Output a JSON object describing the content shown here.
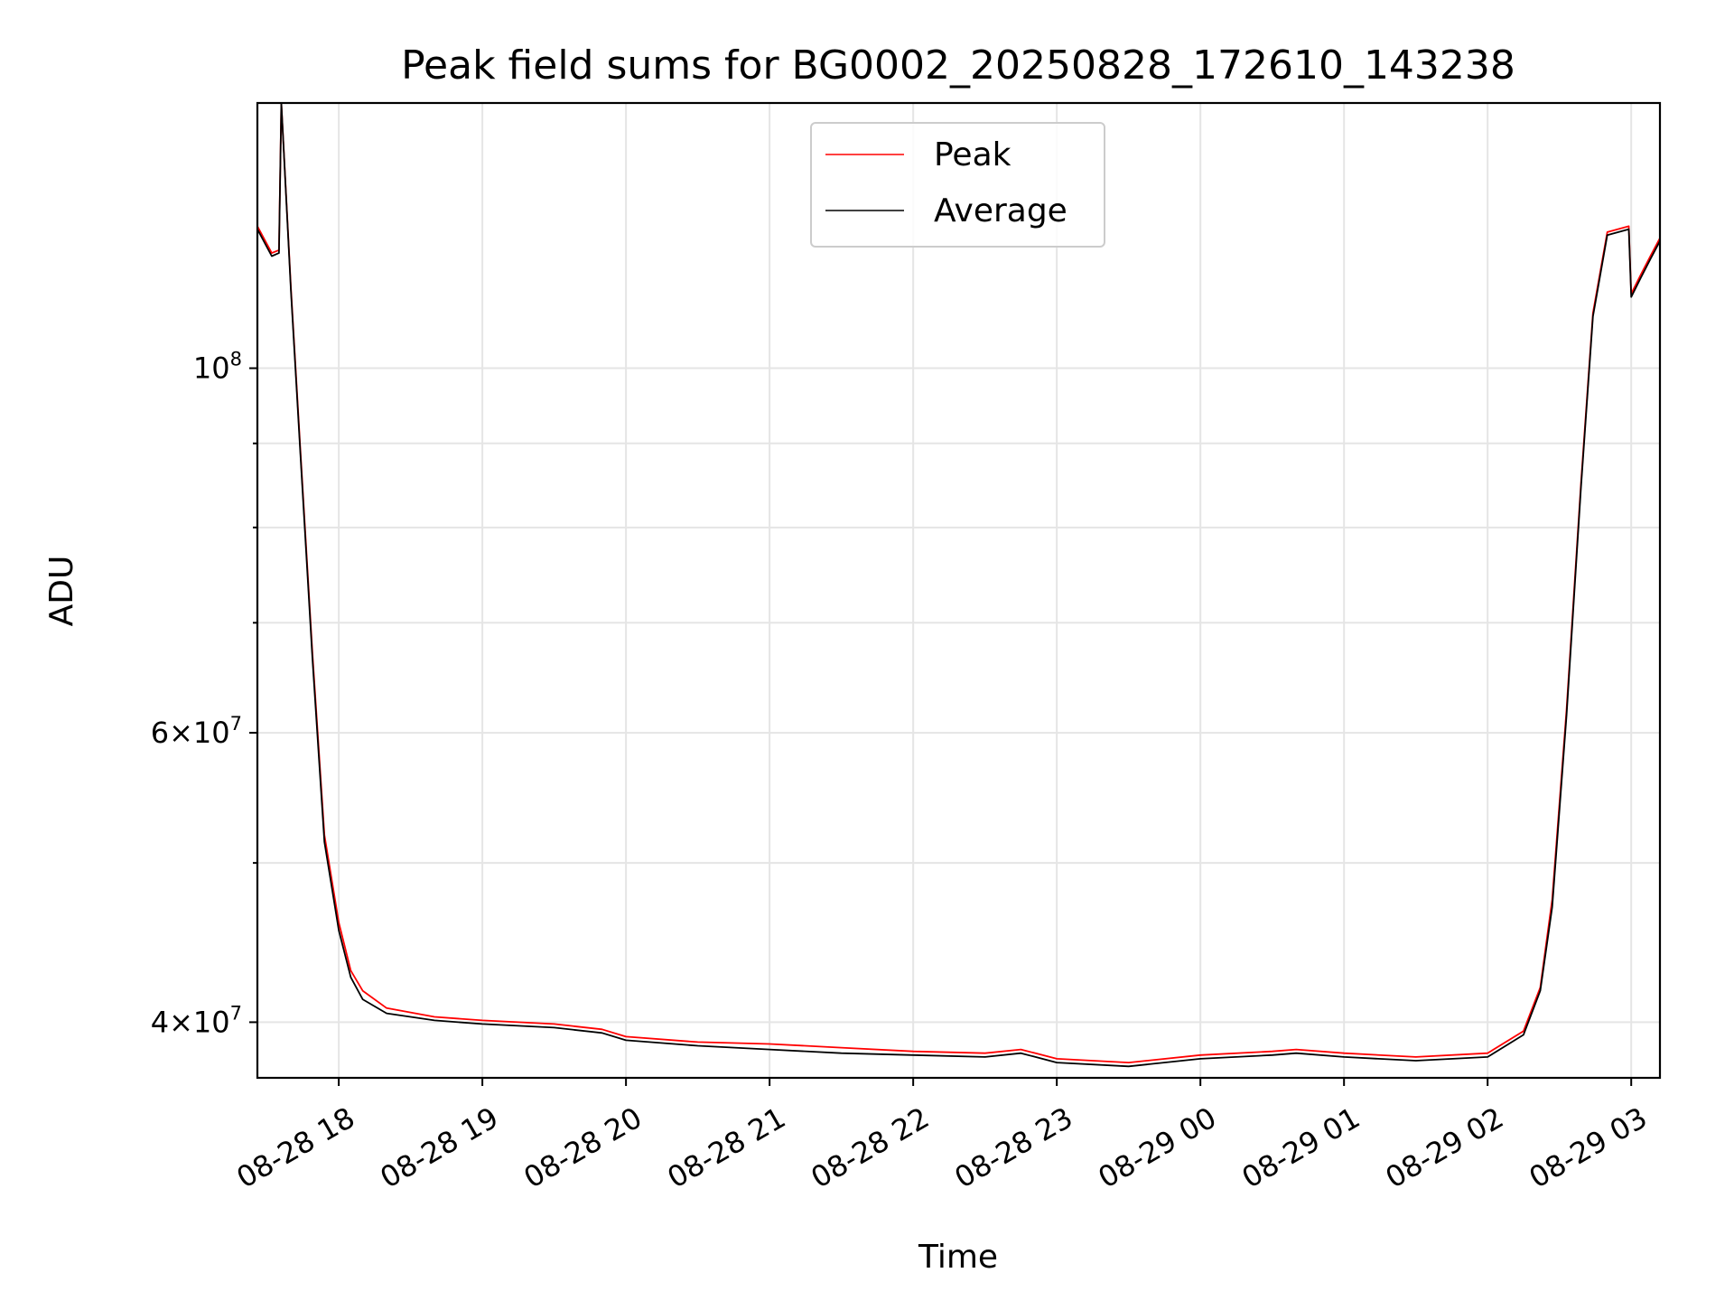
{
  "chart_data": {
    "type": "line",
    "title": "Peak field sums for BG0002_20250828_172610_143238",
    "xlabel": "Time",
    "ylabel": "ADU",
    "y_scale": "log",
    "ylim": [
      37000000,
      145000000
    ],
    "xlim": [
      "2025-08-28 17:26",
      "2025-08-29 03:12"
    ],
    "x_ticks": [
      {
        "t": "2025-08-28 18:00",
        "label": "08-28 18"
      },
      {
        "t": "2025-08-28 19:00",
        "label": "08-28 19"
      },
      {
        "t": "2025-08-28 20:00",
        "label": "08-28 20"
      },
      {
        "t": "2025-08-28 21:00",
        "label": "08-28 21"
      },
      {
        "t": "2025-08-28 22:00",
        "label": "08-28 22"
      },
      {
        "t": "2025-08-28 23:00",
        "label": "08-28 23"
      },
      {
        "t": "2025-08-29 00:00",
        "label": "08-29 00"
      },
      {
        "t": "2025-08-29 01:00",
        "label": "08-29 01"
      },
      {
        "t": "2025-08-29 02:00",
        "label": "08-29 02"
      },
      {
        "t": "2025-08-29 03:00",
        "label": "08-29 03"
      }
    ],
    "y_ticks": [
      {
        "value": 40000000,
        "mant": "4",
        "exp": "7"
      },
      {
        "value": 60000000,
        "mant": "6",
        "exp": "7"
      },
      {
        "value": 100000000,
        "mant": "",
        "exp": "8"
      }
    ],
    "y_minor_ticks": [
      50000000,
      70000000,
      80000000,
      90000000
    ],
    "grid": true,
    "legend_position": "top-center",
    "series": [
      {
        "name": "Peak",
        "color": "#ff0000",
        "points": [
          [
            "2025-08-28 17:26",
            122000000
          ],
          [
            "2025-08-28 17:32",
            117500000
          ],
          [
            "2025-08-28 17:35",
            118000000
          ],
          [
            "2025-08-28 17:36",
            145000000
          ],
          [
            "2025-08-28 17:40",
            112000000
          ],
          [
            "2025-08-28 17:44",
            89000000
          ],
          [
            "2025-08-28 17:49",
            67000000
          ],
          [
            "2025-08-28 17:54",
            52000000
          ],
          [
            "2025-08-28 18:00",
            46000000
          ],
          [
            "2025-08-28 18:05",
            43000000
          ],
          [
            "2025-08-28 18:10",
            41800000
          ],
          [
            "2025-08-28 18:20",
            40800000
          ],
          [
            "2025-08-28 18:40",
            40300000
          ],
          [
            "2025-08-28 19:00",
            40100000
          ],
          [
            "2025-08-28 19:30",
            39900000
          ],
          [
            "2025-08-28 19:50",
            39600000
          ],
          [
            "2025-08-28 20:00",
            39200000
          ],
          [
            "2025-08-28 20:30",
            38900000
          ],
          [
            "2025-08-28 21:00",
            38800000
          ],
          [
            "2025-08-28 21:30",
            38600000
          ],
          [
            "2025-08-28 22:00",
            38400000
          ],
          [
            "2025-08-28 22:30",
            38300000
          ],
          [
            "2025-08-28 22:45",
            38500000
          ],
          [
            "2025-08-28 23:00",
            38000000
          ],
          [
            "2025-08-28 23:30",
            37800000
          ],
          [
            "2025-08-29 00:00",
            38200000
          ],
          [
            "2025-08-29 00:30",
            38400000
          ],
          [
            "2025-08-29 00:40",
            38500000
          ],
          [
            "2025-08-29 01:00",
            38300000
          ],
          [
            "2025-08-29 01:30",
            38100000
          ],
          [
            "2025-08-29 02:00",
            38300000
          ],
          [
            "2025-08-29 02:15",
            39500000
          ],
          [
            "2025-08-29 02:22",
            42000000
          ],
          [
            "2025-08-29 02:27",
            47500000
          ],
          [
            "2025-08-29 02:33",
            62000000
          ],
          [
            "2025-08-29 02:39",
            85000000
          ],
          [
            "2025-08-29 02:44",
            108000000
          ],
          [
            "2025-08-29 02:50",
            121000000
          ],
          [
            "2025-08-29 02:59",
            122000000
          ],
          [
            "2025-08-29 03:00",
            111000000
          ],
          [
            "2025-08-29 03:04",
            114000000
          ],
          [
            "2025-08-29 03:08",
            117000000
          ],
          [
            "2025-08-29 03:12",
            120000000
          ]
        ]
      },
      {
        "name": "Average",
        "color": "#000000",
        "points": [
          [
            "2025-08-28 17:26",
            121500000
          ],
          [
            "2025-08-28 17:32",
            117000000
          ],
          [
            "2025-08-28 17:35",
            117500000
          ],
          [
            "2025-08-28 17:36",
            145000000
          ],
          [
            "2025-08-28 17:40",
            111500000
          ],
          [
            "2025-08-28 17:44",
            88500000
          ],
          [
            "2025-08-28 17:49",
            66500000
          ],
          [
            "2025-08-28 17:54",
            51500000
          ],
          [
            "2025-08-28 18:00",
            45500000
          ],
          [
            "2025-08-28 18:05",
            42600000
          ],
          [
            "2025-08-28 18:10",
            41300000
          ],
          [
            "2025-08-28 18:20",
            40500000
          ],
          [
            "2025-08-28 18:40",
            40100000
          ],
          [
            "2025-08-28 19:00",
            39900000
          ],
          [
            "2025-08-28 19:30",
            39700000
          ],
          [
            "2025-08-28 19:50",
            39400000
          ],
          [
            "2025-08-28 20:00",
            39000000
          ],
          [
            "2025-08-28 20:30",
            38700000
          ],
          [
            "2025-08-28 21:00",
            38500000
          ],
          [
            "2025-08-28 21:30",
            38300000
          ],
          [
            "2025-08-28 22:00",
            38200000
          ],
          [
            "2025-08-28 22:30",
            38100000
          ],
          [
            "2025-08-28 22:45",
            38300000
          ],
          [
            "2025-08-28 23:00",
            37800000
          ],
          [
            "2025-08-28 23:30",
            37600000
          ],
          [
            "2025-08-29 00:00",
            38000000
          ],
          [
            "2025-08-29 00:30",
            38200000
          ],
          [
            "2025-08-29 00:40",
            38300000
          ],
          [
            "2025-08-29 01:00",
            38100000
          ],
          [
            "2025-08-29 01:30",
            37900000
          ],
          [
            "2025-08-29 02:00",
            38100000
          ],
          [
            "2025-08-29 02:15",
            39300000
          ],
          [
            "2025-08-29 02:22",
            41800000
          ],
          [
            "2025-08-29 02:27",
            47000000
          ],
          [
            "2025-08-29 02:33",
            61500000
          ],
          [
            "2025-08-29 02:39",
            84500000
          ],
          [
            "2025-08-29 02:44",
            107500000
          ],
          [
            "2025-08-29 02:50",
            120500000
          ],
          [
            "2025-08-29 02:59",
            121500000
          ],
          [
            "2025-08-29 03:00",
            110500000
          ],
          [
            "2025-08-29 03:04",
            113500000
          ],
          [
            "2025-08-29 03:08",
            116500000
          ],
          [
            "2025-08-29 03:12",
            119500000
          ]
        ]
      }
    ]
  }
}
